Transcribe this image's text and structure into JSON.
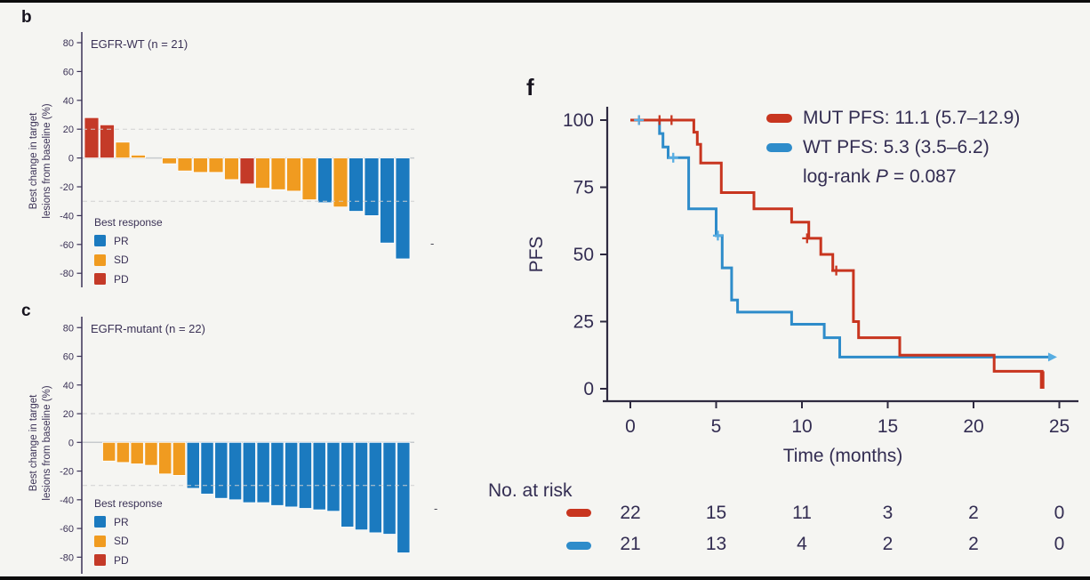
{
  "canvas": {
    "background": "#f5f5f2",
    "letterbox_color": "#0c0c0c"
  },
  "text_color": "#3b3256",
  "stray_marks": {
    "b": "-",
    "c": "-"
  },
  "chart_data": [
    {
      "id": "panel-b",
      "type": "bar",
      "panel_letter": "b",
      "title": "EGFR-WT (n = 21)",
      "ylabel_lines": [
        "Best change in target",
        "lesions from baseline (%)"
      ],
      "ylabel": "Best change in target lesions from baseline (%)",
      "ylim": [
        -80,
        80
      ],
      "yticks": [
        80,
        60,
        40,
        20,
        0,
        -20,
        -40,
        -60,
        -80
      ],
      "reference_lines": [
        20,
        -30
      ],
      "legend": {
        "title": "Best response",
        "items": [
          {
            "label": "PR",
            "color": "#1B7ABF"
          },
          {
            "label": "SD",
            "color": "#F09B20"
          },
          {
            "label": "PD",
            "color": "#C43A28"
          }
        ]
      },
      "bars": [
        {
          "value": 28,
          "response": "PD"
        },
        {
          "value": 23,
          "response": "PD"
        },
        {
          "value": 11,
          "response": "SD"
        },
        {
          "value": 2,
          "response": "SD"
        },
        {
          "value": 0,
          "response": "SD"
        },
        {
          "value": -4,
          "response": "SD"
        },
        {
          "value": -9,
          "response": "SD"
        },
        {
          "value": -10,
          "response": "SD"
        },
        {
          "value": -10,
          "response": "SD"
        },
        {
          "value": -15,
          "response": "SD"
        },
        {
          "value": -18,
          "response": "PD"
        },
        {
          "value": -21,
          "response": "SD"
        },
        {
          "value": -22,
          "response": "SD"
        },
        {
          "value": -23,
          "response": "SD"
        },
        {
          "value": -29,
          "response": "SD"
        },
        {
          "value": -31,
          "response": "PR"
        },
        {
          "value": -34,
          "response": "SD"
        },
        {
          "value": -37,
          "response": "PR"
        },
        {
          "value": -40,
          "response": "PR"
        },
        {
          "value": -59,
          "response": "PR"
        },
        {
          "value": -70,
          "response": "PR"
        }
      ]
    },
    {
      "id": "panel-c",
      "type": "bar",
      "panel_letter": "c",
      "title": "EGFR-mutant (n = 22)",
      "ylabel_lines": [
        "Best change in target",
        "lesions from baseline (%)"
      ],
      "ylabel": "Best change in target lesions from baseline (%)",
      "ylim": [
        -80,
        80
      ],
      "yticks": [
        80,
        60,
        40,
        20,
        0,
        -20,
        -40,
        -60,
        -80
      ],
      "reference_lines": [
        20,
        -30
      ],
      "legend": {
        "title": "Best response",
        "items": [
          {
            "label": "PR",
            "color": "#1B7ABF"
          },
          {
            "label": "SD",
            "color": "#F09B20"
          },
          {
            "label": "PD",
            "color": "#C43A28"
          }
        ]
      },
      "bars": [
        {
          "value": -13,
          "response": "SD"
        },
        {
          "value": -14,
          "response": "SD"
        },
        {
          "value": -15,
          "response": "SD"
        },
        {
          "value": -16,
          "response": "SD"
        },
        {
          "value": -22,
          "response": "SD"
        },
        {
          "value": -23,
          "response": "SD"
        },
        {
          "value": -32,
          "response": "PR"
        },
        {
          "value": -36,
          "response": "PR"
        },
        {
          "value": -39,
          "response": "PR"
        },
        {
          "value": -40,
          "response": "PR"
        },
        {
          "value": -42,
          "response": "PR"
        },
        {
          "value": -42,
          "response": "PR"
        },
        {
          "value": -44,
          "response": "PR"
        },
        {
          "value": -45,
          "response": "PR"
        },
        {
          "value": -46,
          "response": "PR"
        },
        {
          "value": -47,
          "response": "PR"
        },
        {
          "value": -48,
          "response": "PR"
        },
        {
          "value": -59,
          "response": "PR"
        },
        {
          "value": -61,
          "response": "PR"
        },
        {
          "value": -63,
          "response": "PR"
        },
        {
          "value": -64,
          "response": "PR"
        },
        {
          "value": -77,
          "response": "PR"
        }
      ]
    },
    {
      "id": "panel-f",
      "type": "line",
      "panel_letter": "f",
      "ylabel": "PFS",
      "xlabel": "Time (months)",
      "ylim": [
        0,
        100
      ],
      "xlim": [
        0,
        25
      ],
      "yticks": [
        100,
        75,
        50,
        25,
        0
      ],
      "xticks": [
        0,
        5,
        10,
        15,
        20,
        25
      ],
      "legend": {
        "position": "top-right",
        "entries": [
          {
            "name": "MUT",
            "color": "#C8351F",
            "label": "MUT PFS: 11.1 (5.7–12.9)"
          },
          {
            "name": "WT",
            "color": "#2E8CCA",
            "label": "WT PFS: 5.3 (3.5–6.2)"
          }
        ],
        "annotation": {
          "prefix": "log-rank",
          "p_symbol": "P",
          "suffix": "= 0.087"
        }
      },
      "series": [
        {
          "name": "MUT",
          "color": "#C8351F",
          "censor_color": "#C8351F",
          "thick_end": true,
          "steps": [
            [
              0,
              100
            ],
            [
              3.7,
              100
            ],
            [
              3.7,
              95.5
            ],
            [
              3.9,
              95.5
            ],
            [
              3.9,
              91
            ],
            [
              4.1,
              91
            ],
            [
              4.1,
              84
            ],
            [
              5.3,
              84
            ],
            [
              5.3,
              73
            ],
            [
              7.2,
              73
            ],
            [
              7.2,
              67
            ],
            [
              9.4,
              67
            ],
            [
              9.4,
              62
            ],
            [
              10.4,
              62
            ],
            [
              10.4,
              56
            ],
            [
              11.1,
              56
            ],
            [
              11.1,
              50
            ],
            [
              11.8,
              50
            ],
            [
              11.8,
              44
            ],
            [
              13.0,
              44
            ],
            [
              13.0,
              25
            ],
            [
              13.3,
              25
            ],
            [
              13.3,
              19
            ],
            [
              15.7,
              19
            ],
            [
              15.7,
              12.5
            ],
            [
              21.2,
              12.5
            ],
            [
              21.2,
              6.5
            ],
            [
              24.0,
              6.5
            ],
            [
              24.0,
              0
            ]
          ],
          "censors": [
            [
              0.5,
              100
            ],
            [
              1.7,
              100
            ],
            [
              2.4,
              100
            ],
            [
              10.3,
              56
            ],
            [
              12.0,
              44
            ]
          ]
        },
        {
          "name": "WT",
          "color": "#2E8CCA",
          "censor_color": "#57ADE2",
          "end_arrow": true,
          "steps": [
            [
              0,
              100
            ],
            [
              1.7,
              100
            ],
            [
              1.7,
              95
            ],
            [
              1.9,
              95
            ],
            [
              1.9,
              90
            ],
            [
              2.2,
              90
            ],
            [
              2.2,
              86
            ],
            [
              3.4,
              86
            ],
            [
              3.4,
              67
            ],
            [
              5.0,
              67
            ],
            [
              5.0,
              57
            ],
            [
              5.35,
              57
            ],
            [
              5.35,
              45
            ],
            [
              5.9,
              45
            ],
            [
              5.9,
              33
            ],
            [
              6.25,
              33
            ],
            [
              6.25,
              28.5
            ],
            [
              9.4,
              28.5
            ],
            [
              9.4,
              24
            ],
            [
              11.3,
              24
            ],
            [
              11.3,
              19
            ],
            [
              12.2,
              19
            ],
            [
              12.2,
              11.8
            ],
            [
              24.35,
              11.8
            ]
          ],
          "censors": [
            [
              0.5,
              100
            ],
            [
              2.5,
              86
            ],
            [
              5.1,
              57
            ]
          ]
        }
      ],
      "risk_table": {
        "label": "No. at risk",
        "times": [
          0,
          5,
          10,
          15,
          20,
          25
        ],
        "rows": [
          {
            "name": "MUT",
            "color": "#C8351F",
            "values": [
              22,
              15,
              11,
              3,
              2,
              0
            ]
          },
          {
            "name": "WT",
            "color": "#2E8CCA",
            "values": [
              21,
              13,
              4,
              2,
              2,
              0
            ]
          }
        ]
      }
    }
  ]
}
